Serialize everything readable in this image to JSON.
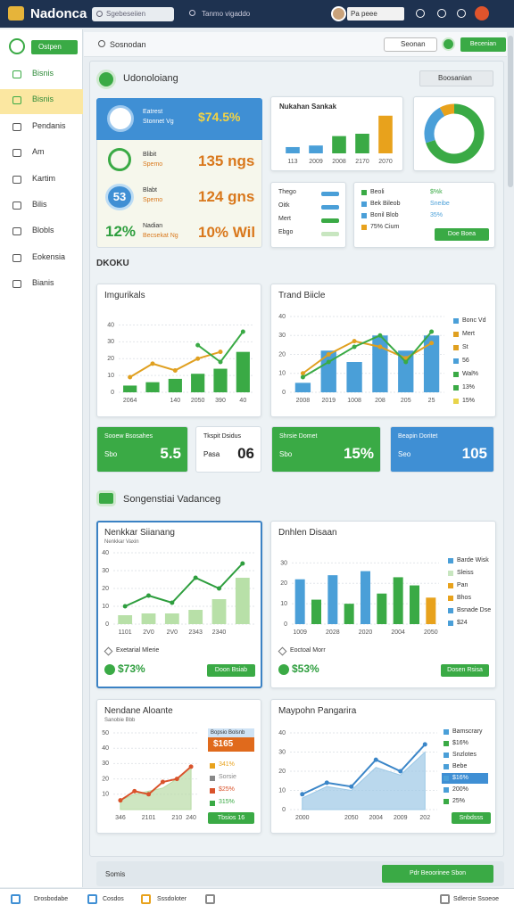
{
  "header": {
    "logo": "Nadonca",
    "search": "Sgebeseiien",
    "search_hint": "Tanmo vigaddo",
    "user": "Pa peee"
  },
  "sidebar": {
    "button": "Ostpen",
    "items": [
      "Bisnis",
      "Bisnis",
      "Pendanis",
      "Am",
      "Kartim",
      "Bilis",
      "Blobls",
      "Eokensia",
      "Bianis"
    ]
  },
  "toolbar": {
    "title": "Sosnodan",
    "search": "Seonan",
    "button": "Becenian"
  },
  "section1": {
    "title": "Udonoloiang",
    "dropdown": "Boosanian"
  },
  "summary": [
    {
      "label": "Eatrest",
      "sublabel": "Stonnet Vg",
      "value": "$74.5%"
    },
    {
      "label": "Blibit",
      "sublabel": "Spemo",
      "value": "135 ngs"
    },
    {
      "badge": "53",
      "label": "Blabt",
      "sublabel": "Spemo",
      "value": "124 gns"
    },
    {
      "badge": "12%",
      "label": "Nadian",
      "sublabel": "Becsekat Ng",
      "value": "10% Wil"
    }
  ],
  "mini_bar": {
    "type": "combo",
    "title": "Nukahan Sankak",
    "categories": [
      "113",
      "2009",
      "2008",
      "2170",
      "2070"
    ],
    "ylim": [
      0,
      50
    ],
    "series": [
      {
        "kind": "bar",
        "colors": [
          "#4a9fd8",
          "#4a9fd8",
          "#3aaa45",
          "#3aaa45",
          "#e8a21c"
        ],
        "values": [
          8,
          10,
          22,
          25,
          48
        ]
      }
    ]
  },
  "donut": {
    "type": "pie",
    "values": [
      70,
      22,
      8
    ],
    "colors": [
      "#3aaa45",
      "#4a9fd8",
      "#e8a21c"
    ]
  },
  "legend_card": {
    "items": [
      {
        "label": "Thego",
        "color": "#4a9fd8"
      },
      {
        "label": "Oitk",
        "color": "#4a9fd8"
      },
      {
        "label": "Mert",
        "color": "#3aaa45"
      },
      {
        "label": "Ebgo",
        "color": "#c8e6c0"
      }
    ]
  },
  "stats_card": {
    "rows": [
      {
        "label": "Beoli",
        "value": "$%k",
        "color": "#3aaa45"
      },
      {
        "label": "Bek Bileob",
        "value": "Sneibe",
        "color": "#4a9fd8"
      },
      {
        "label": "Bonil Blob",
        "value": "35%",
        "color": "#4a9fd8"
      },
      {
        "label": "75% Cium",
        "color": "#e8a21c"
      }
    ],
    "button": "Doe Boea"
  },
  "section_label": "DKOKU",
  "charts": [
    {
      "type": "combo",
      "title": "Imgurikals",
      "categories": [
        "2064",
        null,
        "140",
        "2050",
        "390",
        "40"
      ],
      "ylim": [
        0,
        45
      ],
      "yticks": [
        0,
        10,
        20,
        30,
        40
      ],
      "series": [
        {
          "kind": "bar",
          "color": "#3aaa45",
          "values": [
            4,
            6,
            8,
            11,
            14,
            24
          ]
        },
        {
          "kind": "line",
          "color": "#e0a020",
          "values": [
            9,
            17,
            13,
            20,
            24,
            null
          ]
        },
        {
          "kind": "line",
          "color": "#3aaa45",
          "values": [
            null,
            null,
            null,
            28,
            18,
            36
          ]
        }
      ]
    },
    {
      "type": "combo",
      "title": "Trand Biicle",
      "categories": [
        "2008",
        "2019",
        "1008",
        "208",
        "205",
        "25"
      ],
      "ylim": [
        0,
        40
      ],
      "yticks": [
        0,
        10,
        20,
        30,
        40
      ],
      "series": [
        {
          "kind": "bar",
          "color": "#4a9fd8",
          "values": [
            5,
            22,
            16,
            30,
            22,
            30
          ]
        },
        {
          "kind": "line",
          "color": "#e0a020",
          "values": [
            10,
            20,
            27,
            24,
            18,
            26
          ]
        },
        {
          "kind": "line",
          "color": "#3aaa45",
          "values": [
            8,
            16,
            24,
            30,
            16,
            32
          ]
        }
      ],
      "legend": [
        {
          "label": "Bonc Vd",
          "color": "#4a9fd8"
        },
        {
          "label": "Mert",
          "color": "#e0a020"
        },
        {
          "label": "St",
          "color": "#e0a020"
        },
        {
          "label": "56",
          "color": "#4a9fd8"
        },
        {
          "label": "Wal%",
          "color": "#3aaa45"
        },
        {
          "label": "13%",
          "color": "#3aaa45"
        },
        {
          "label": "15%",
          "color": "#e8d44a"
        }
      ]
    },
    {
      "type": "combo",
      "title": "Nenkkar Siianang",
      "subtitle": "Nenkkar Vaxin",
      "categories": [
        "1101",
        "2V0",
        "2V0",
        "2343",
        "2340",
        null
      ],
      "ylim": [
        0,
        40
      ],
      "yticks": [
        0,
        10,
        20,
        30,
        40
      ],
      "series": [
        {
          "kind": "bar",
          "color": "#b8e0a8",
          "values": [
            5,
            6,
            6,
            8,
            14,
            26
          ]
        },
        {
          "kind": "line",
          "color": "#2e9e3e",
          "values": [
            10,
            16,
            12,
            26,
            20,
            34
          ]
        }
      ],
      "footer": {
        "note": "Exetarial Mlerie",
        "value": "$73%",
        "button": "Doon Bsiab"
      }
    },
    {
      "type": "combo",
      "title": "Dnhlen Disaan",
      "categories": [
        "1009",
        null,
        "2028",
        null,
        "2020",
        null,
        "2004",
        null,
        "2050"
      ],
      "ylim": [
        0,
        35
      ],
      "yticks": [
        0,
        10,
        20,
        30
      ],
      "series": [
        {
          "kind": "bar",
          "colors": [
            "#4a9fd8",
            "#3aaa45",
            "#4a9fd8",
            "#3aaa45",
            "#4a9fd8",
            "#3aaa45",
            "#3aaa45",
            "#3aaa45",
            "#e8a21c"
          ],
          "values": [
            22,
            12,
            24,
            10,
            26,
            15,
            23,
            19,
            13
          ]
        }
      ],
      "legend": [
        {
          "label": "Barde Wisk",
          "color": "#4a9fd8"
        },
        {
          "label": "Sleiss",
          "color": "#c8e6c0"
        },
        {
          "label": "Pan",
          "color": "#e8a21c"
        },
        {
          "label": "Bhos",
          "color": "#e8a21c"
        },
        {
          "label": "Bsnade Dse",
          "color": "#4a9fd8"
        },
        {
          "label": "$24",
          "color": "#4a9fd8"
        }
      ],
      "footer": {
        "note": "Eoctoal Morr",
        "value": "$53%",
        "button": "Dosen Rsisa"
      }
    },
    {
      "type": "combo",
      "title": "Nendane Aloante",
      "subtitle": "Sanobie Bbb",
      "categories": [
        "346",
        null,
        "2101",
        null,
        "210",
        "240"
      ],
      "ylim": [
        0,
        50
      ],
      "yticks": [
        10,
        20,
        30,
        40,
        50
      ],
      "series": [
        {
          "kind": "area",
          "color": "#b9dca6",
          "values": [
            6,
            10,
            12,
            14,
            20,
            28
          ]
        },
        {
          "kind": "line",
          "color": "#d9532b",
          "values": [
            6,
            12,
            10,
            18,
            20,
            28
          ]
        }
      ],
      "callout": {
        "title": "Bopsio Bolsnb",
        "value": "$165"
      },
      "notes": [
        {
          "label": "341%",
          "color": "#e8a21c"
        },
        {
          "label": "Sorsie",
          "color": "#888888"
        },
        {
          "label": "$25%",
          "color": "#d9532b"
        },
        {
          "label": "315%",
          "color": "#3aaa45"
        }
      ],
      "button": "Tbsios 16"
    },
    {
      "type": "combo",
      "title": "Maypohn Pangarira",
      "categories": [
        "2000",
        null,
        "2050",
        "2004",
        "2009",
        "202"
      ],
      "ylim": [
        0,
        40
      ],
      "yticks": [
        0,
        10,
        20,
        30,
        40
      ],
      "series": [
        {
          "kind": "area",
          "color": "#9cc8e6",
          "values": [
            6,
            12,
            10,
            22,
            18,
            30
          ]
        },
        {
          "kind": "line",
          "color": "#3b86c8",
          "values": [
            8,
            14,
            12,
            26,
            20,
            34
          ]
        }
      ],
      "legend": [
        {
          "label": "Bamscrary",
          "color": "#4a9fd8"
        },
        {
          "label": "$16%",
          "color": "#3aaa45"
        },
        {
          "label": "Snzlotes",
          "color": "#4a9fd8"
        },
        {
          "label": "Bebe",
          "color": "#4a9fd8"
        },
        {
          "label": "$16%",
          "color": "#4a9fd8",
          "boxed": true
        },
        {
          "label": "200%",
          "color": "#4a9fd8"
        },
        {
          "label": "25%",
          "color": "#3aaa45"
        }
      ],
      "button": "Snbdsss"
    }
  ],
  "tiles": [
    {
      "label": "Sooew Bsosahes",
      "sub": "Sbo",
      "value": "5.5",
      "color": "#3aaa45"
    },
    {
      "label": "Tkspit Dsidus",
      "sub": "Pasa",
      "value": "06",
      "color": "#ffffff"
    },
    {
      "label": "Shrsie Domet",
      "sub": "Sbo",
      "value": "15%",
      "color": "#3aaa45"
    },
    {
      "label": "Beapin Doritet",
      "sub": "Seo",
      "value": "105",
      "color": "#3f8fd4"
    }
  ],
  "section2": {
    "title": "Songenstiai Vadanceg"
  },
  "footer": {
    "label": "Somis",
    "button": "Pdr Beoorinee Sbon"
  },
  "statusbar": [
    "Drosbodabe",
    "Cosdos",
    "Sssdoloter",
    "Sdlercie Ssoeoe"
  ]
}
